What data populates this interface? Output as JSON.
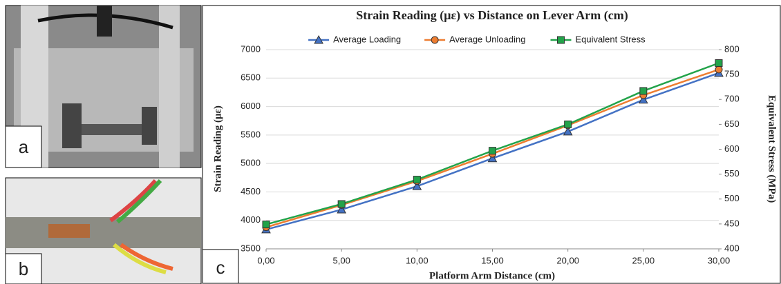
{
  "panels": {
    "labels": [
      "a",
      "b",
      "c"
    ]
  },
  "chart_data": {
    "type": "line",
    "title": "Strain Reading (με) vs Distance on Lever Arm (cm)",
    "x_label": "Platform Arm Distance (cm)",
    "y_label": "Strain Reading (με)",
    "y2_label": "Equivalent Stress (MPa)",
    "x": [
      0,
      5,
      10,
      15,
      20,
      25,
      30
    ],
    "xlim": [
      0,
      30
    ],
    "xticks": [
      {
        "value": 0,
        "label": "0,00"
      },
      {
        "value": 5,
        "label": "5,00"
      },
      {
        "value": 10,
        "label": "10,00"
      },
      {
        "value": 15,
        "label": "15,00"
      },
      {
        "value": 20,
        "label": "20,00"
      },
      {
        "value": 25,
        "label": "25,00"
      },
      {
        "value": 30,
        "label": "30,00"
      }
    ],
    "ylim": [
      3500,
      7000
    ],
    "yticks": [
      3500,
      4000,
      4500,
      5000,
      5500,
      6000,
      6500,
      7000
    ],
    "y2lim": [
      400,
      800
    ],
    "y2ticks": [
      400,
      450,
      500,
      550,
      600,
      650,
      700,
      750,
      800
    ],
    "legend": "top",
    "series": [
      {
        "name": "Average Loading",
        "color": "#4472c4",
        "marker": "triangle",
        "values": [
          3840,
          4190,
          4600,
          5090,
          5560,
          6120,
          6590
        ]
      },
      {
        "name": "Average Unloading",
        "color": "#ed7d31",
        "marker": "circle",
        "values": [
          3880,
          4270,
          4690,
          5170,
          5670,
          6200,
          6650
        ]
      },
      {
        "name": "Equivalent Stress",
        "color": "#22a34a",
        "marker": "square",
        "axis": "y2",
        "values": [
          449,
          490,
          539,
          597,
          650,
          717,
          773
        ]
      }
    ]
  }
}
